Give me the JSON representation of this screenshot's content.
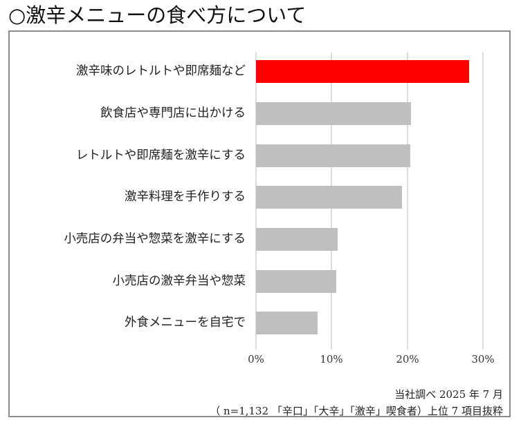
{
  "title": "○激辛メニューの食べ方について",
  "chart_data": {
    "type": "bar",
    "orientation": "horizontal",
    "title": "○激辛メニューの食べ方について",
    "categories": [
      "激辛味のレトルトや即席麺など",
      "飲食店や専門店に出かける",
      "レトルトや即席麺を激辛にする",
      "激辛料理を手作りする",
      "小売店の弁当や惣菜を激辛にする",
      "小売店の激辛弁当や惣菜",
      "外食メニューを自宅で"
    ],
    "values": [
      28.2,
      20.5,
      20.4,
      19.3,
      10.8,
      10.6,
      8.1
    ],
    "unit": "%",
    "xlabel": "",
    "ylabel": "",
    "xlim": [
      0,
      30
    ],
    "xticks": [
      "0%",
      "10%",
      "20%",
      "30%"
    ],
    "grid": true,
    "legend": null,
    "highlight_color": "#ff0000",
    "bar_color": "#bfbfbf",
    "grid_color": "#dcdcdc"
  },
  "labels": {
    "cat0": "激辛味のレトルトや即席麺など",
    "cat1": "飲食店や専門店に出かける",
    "cat2": "レトルトや即席麺を激辛にする",
    "cat3": "激辛料理を手作りする",
    "cat4": "小売店の弁当や惣菜を激辛にする",
    "cat5": "小売店の激辛弁当や惣菜",
    "cat6": "外食メニューを自宅で",
    "tick0": "0%",
    "tick10": "10%",
    "tick20": "20%",
    "tick30": "30%"
  },
  "footer": {
    "source": "当社調べ 2025 年 7 月",
    "sample": "（ n=1,132 「辛口」「大辛」「激辛」喫食者）上位 7 項目抜粋"
  }
}
